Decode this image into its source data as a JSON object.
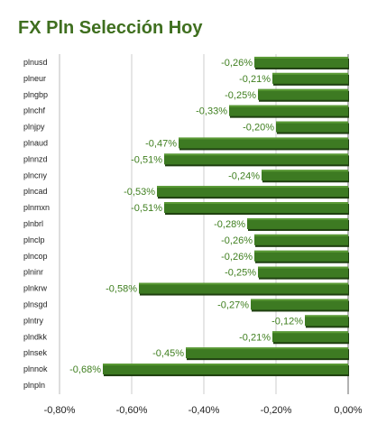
{
  "chart_data": {
    "type": "bar",
    "orientation": "horizontal",
    "title": "FX Pln Selección Hoy",
    "categories": [
      "plnusd",
      "plneur",
      "plngbp",
      "plnchf",
      "plnjpy",
      "plnaud",
      "plnnzd",
      "plncny",
      "plncad",
      "plnmxn",
      "plnbrl",
      "plnclp",
      "plncop",
      "plninr",
      "plnkrw",
      "plnsgd",
      "plntry",
      "plndkk",
      "plnsek",
      "plnnok",
      "plnpln"
    ],
    "values": [
      -0.26,
      -0.21,
      -0.25,
      -0.33,
      -0.2,
      -0.47,
      -0.51,
      -0.24,
      -0.53,
      -0.51,
      -0.28,
      -0.26,
      -0.26,
      -0.25,
      -0.58,
      -0.27,
      -0.12,
      -0.21,
      -0.45,
      -0.68,
      0.0
    ],
    "value_labels": [
      "-0,26%",
      "-0,21%",
      "-0,25%",
      "-0,33%",
      "-0,20%",
      "-0,47%",
      "-0,51%",
      "-0,24%",
      "-0,53%",
      "-0,51%",
      "-0,28%",
      "-0,26%",
      "-0,26%",
      "-0,25%",
      "-0,58%",
      "-0,27%",
      "-0,12%",
      "-0,21%",
      "-0,45%",
      "-0,68%",
      ""
    ],
    "xlim": [
      -0.8,
      0.0
    ],
    "x_ticks": [
      -0.8,
      -0.6,
      -0.4,
      -0.2,
      0.0
    ],
    "x_tick_labels": [
      "-0,80%",
      "-0,60%",
      "-0,40%",
      "-0,20%",
      "0,00%"
    ],
    "grid": true,
    "bar_color": "#3d7a22",
    "bar_shadow_color": "#1f3f10",
    "title_color": "#3f6f1f",
    "label_color": "#3f7f1f"
  }
}
